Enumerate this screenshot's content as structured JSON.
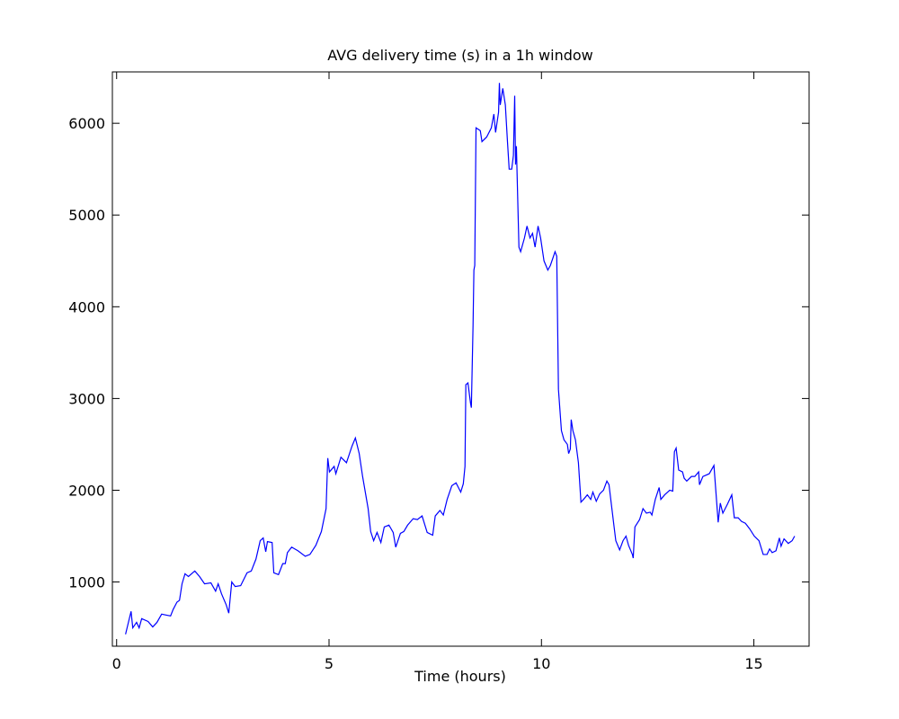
{
  "chart_data": {
    "type": "line",
    "title": "AVG delivery time (s) in a 1h window",
    "xlabel": "Time (hours)",
    "x": [
      0.21,
      0.34,
      0.38,
      0.47,
      0.53,
      0.59,
      0.74,
      0.85,
      0.95,
      1.06,
      1.16,
      1.27,
      1.33,
      1.42,
      1.48,
      1.54,
      1.61,
      1.69,
      1.84,
      1.95,
      2.07,
      2.22,
      2.33,
      2.39,
      2.47,
      2.58,
      2.64,
      2.71,
      2.79,
      2.92,
      3.07,
      3.17,
      3.28,
      3.38,
      3.45,
      3.51,
      3.55,
      3.66,
      3.7,
      3.81,
      3.91,
      3.97,
      4.02,
      4.12,
      4.27,
      4.44,
      4.55,
      4.69,
      4.82,
      4.93,
      4.97,
      5.01,
      5.12,
      5.16,
      5.28,
      5.41,
      5.54,
      5.62,
      5.71,
      5.79,
      5.92,
      5.98,
      6.05,
      6.13,
      6.22,
      6.3,
      6.41,
      6.51,
      6.57,
      6.68,
      6.76,
      6.85,
      6.98,
      7.08,
      7.19,
      7.31,
      7.44,
      7.5,
      7.61,
      7.69,
      7.78,
      7.89,
      7.99,
      8.1,
      8.16,
      8.2,
      8.22,
      8.27,
      8.33,
      8.35,
      8.39,
      8.41,
      8.43,
      8.46,
      8.56,
      8.6,
      8.71,
      8.82,
      8.88,
      8.92,
      8.99,
      9.01,
      9.03,
      9.09,
      9.15,
      9.2,
      9.24,
      9.3,
      9.34,
      9.37,
      9.39,
      9.41,
      9.47,
      9.51,
      9.6,
      9.66,
      9.73,
      9.79,
      9.85,
      9.92,
      9.98,
      10.06,
      10.15,
      10.21,
      10.32,
      10.36,
      10.4,
      10.47,
      10.53,
      10.61,
      10.64,
      10.68,
      10.7,
      10.74,
      10.8,
      10.87,
      10.93,
      10.99,
      11.08,
      11.16,
      11.21,
      11.29,
      11.37,
      11.46,
      11.54,
      11.59,
      11.71,
      11.75,
      11.84,
      11.92,
      11.99,
      12.05,
      12.14,
      12.16,
      12.2,
      12.31,
      12.39,
      12.47,
      12.56,
      12.6,
      12.68,
      12.77,
      12.81,
      12.9,
      13.02,
      13.09,
      13.13,
      13.17,
      13.23,
      13.32,
      13.36,
      13.42,
      13.53,
      13.61,
      13.7,
      13.72,
      13.8,
      13.95,
      14.06,
      14.16,
      14.21,
      14.27,
      14.38,
      14.48,
      14.54,
      14.63,
      14.71,
      14.8,
      14.9,
      15.01,
      15.12,
      15.22,
      15.31,
      15.37,
      15.43,
      15.52,
      15.6,
      15.64,
      15.71,
      15.81,
      15.9,
      15.96
    ],
    "series": [
      {
        "color": "#0000ff",
        "values": [
          430,
          680,
          500,
          560,
          500,
          600,
          570,
          510,
          560,
          650,
          640,
          630,
          700,
          780,
          800,
          980,
          1090,
          1060,
          1120,
          1060,
          980,
          990,
          900,
          980,
          870,
          750,
          660,
          1000,
          950,
          960,
          1100,
          1120,
          1250,
          1450,
          1480,
          1330,
          1440,
          1430,
          1100,
          1080,
          1200,
          1200,
          1320,
          1380,
          1340,
          1280,
          1300,
          1400,
          1550,
          1800,
          2350,
          2200,
          2260,
          2180,
          2360,
          2300,
          2480,
          2570,
          2400,
          2150,
          1800,
          1550,
          1450,
          1540,
          1430,
          1600,
          1620,
          1540,
          1380,
          1530,
          1550,
          1620,
          1690,
          1680,
          1720,
          1540,
          1510,
          1720,
          1780,
          1730,
          1900,
          2050,
          2080,
          1980,
          2070,
          2260,
          3150,
          3170,
          2950,
          2900,
          3800,
          4400,
          4450,
          5950,
          5920,
          5800,
          5850,
          5950,
          6100,
          5900,
          6120,
          6440,
          6200,
          6380,
          6200,
          5800,
          5500,
          5500,
          5650,
          6300,
          5550,
          5750,
          4650,
          4600,
          4750,
          4880,
          4750,
          4800,
          4650,
          4880,
          4750,
          4500,
          4400,
          4450,
          4600,
          4550,
          3100,
          2650,
          2550,
          2500,
          2400,
          2450,
          2770,
          2650,
          2550,
          2300,
          1870,
          1900,
          1950,
          1900,
          1980,
          1880,
          1960,
          2000,
          2100,
          2060,
          1600,
          1450,
          1350,
          1450,
          1500,
          1400,
          1300,
          1260,
          1600,
          1680,
          1800,
          1750,
          1760,
          1730,
          1900,
          2030,
          1900,
          1950,
          2000,
          1990,
          2420,
          2460,
          2220,
          2200,
          2130,
          2100,
          2150,
          2150,
          2200,
          2060,
          2150,
          2180,
          2270,
          1650,
          1860,
          1750,
          1850,
          1950,
          1700,
          1700,
          1660,
          1640,
          1580,
          1500,
          1450,
          1300,
          1300,
          1360,
          1320,
          1340,
          1480,
          1390,
          1470,
          1420,
          1450,
          1500
        ]
      }
    ],
    "xlim": [
      -0.1,
      16.3
    ],
    "ylim": [
      300,
      6560
    ],
    "xticks": [
      0,
      5,
      10,
      15
    ],
    "yticks": [
      1000,
      2000,
      3000,
      4000,
      5000,
      6000
    ],
    "grid": false
  }
}
